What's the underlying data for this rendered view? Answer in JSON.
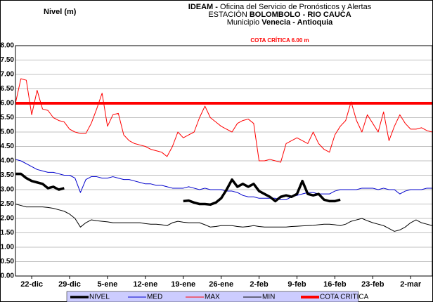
{
  "chart_data": {
    "type": "line",
    "y_label": "Nivel (m)",
    "title_lines": [
      [
        {
          "t": "IDEAM -",
          "b": true
        },
        {
          "t": " Oficina del Servicio de Pronósticos y Alertas",
          "b": false
        }
      ],
      [
        {
          "t": "ESTACIÓN ",
          "b": false
        },
        {
          "t": "BOLOMBOLO - RIO CAUCA",
          "b": true
        }
      ],
      [
        {
          "t": "Municipio ",
          "b": false
        },
        {
          "t": "Venecia - Antioquia",
          "b": true
        }
      ]
    ],
    "annotation": "COTA CRÍTICA 6.00 m",
    "categories": [
      null,
      null,
      null,
      "22-dic",
      null,
      null,
      null,
      null,
      null,
      null,
      "29-dic",
      null,
      null,
      null,
      null,
      null,
      null,
      "5-ene",
      null,
      null,
      null,
      null,
      null,
      null,
      "12-ene",
      null,
      null,
      null,
      null,
      null,
      null,
      "19-ene",
      null,
      null,
      null,
      null,
      null,
      null,
      "26-ene",
      null,
      null,
      null,
      null,
      null,
      null,
      "2-feb",
      null,
      null,
      null,
      null,
      null,
      null,
      "9-feb",
      null,
      null,
      null,
      null,
      null,
      null,
      "16-feb",
      null,
      null,
      null,
      null,
      null,
      null,
      "23-feb",
      null,
      null,
      null,
      null,
      null,
      null,
      "2-mar",
      null,
      null,
      null,
      null
    ],
    "series": [
      {
        "name": "MAX",
        "color": "#ff0000",
        "width": 1,
        "values": [
          6.0,
          6.85,
          6.8,
          5.6,
          6.45,
          5.8,
          5.75,
          5.5,
          5.4,
          5.35,
          5.1,
          5.0,
          4.95,
          4.95,
          5.3,
          5.8,
          6.35,
          5.2,
          5.6,
          5.65,
          4.9,
          4.7,
          4.6,
          4.55,
          4.5,
          4.4,
          4.35,
          4.3,
          4.15,
          4.5,
          5.0,
          4.8,
          4.9,
          5.0,
          5.5,
          5.9,
          5.5,
          5.35,
          5.2,
          5.1,
          5.0,
          5.3,
          5.4,
          5.45,
          5.3,
          4.0,
          4.0,
          4.05,
          4.0,
          3.95,
          4.6,
          4.7,
          4.8,
          4.7,
          4.6,
          5.0,
          4.6,
          4.4,
          4.3,
          4.9,
          5.2,
          5.4,
          6.05,
          5.4,
          5.0,
          5.6,
          5.3,
          5.0,
          5.7,
          4.7,
          5.2,
          5.6,
          5.3,
          5.1,
          5.1,
          5.15,
          5.05,
          5.0
        ]
      },
      {
        "name": "MED",
        "color": "#0000cc",
        "width": 1,
        "values": [
          4.05,
          4.0,
          3.9,
          3.8,
          3.7,
          3.65,
          3.6,
          3.6,
          3.55,
          3.5,
          3.5,
          3.4,
          2.9,
          3.35,
          3.45,
          3.45,
          3.4,
          3.4,
          3.45,
          3.4,
          3.35,
          3.35,
          3.3,
          3.25,
          3.2,
          3.2,
          3.15,
          3.15,
          3.1,
          3.05,
          3.05,
          3.05,
          3.1,
          3.05,
          3.0,
          3.05,
          3.0,
          3.0,
          3.0,
          2.95,
          2.95,
          2.9,
          2.8,
          2.75,
          2.75,
          2.7,
          2.7,
          2.7,
          2.7,
          2.65,
          2.65,
          2.75,
          2.8,
          2.85,
          2.9,
          2.9,
          2.85,
          2.85,
          2.85,
          2.95,
          3.0,
          3.0,
          3.0,
          3.0,
          3.05,
          3.05,
          3.05,
          3.0,
          3.05,
          3.0,
          3.0,
          2.85,
          2.95,
          3.0,
          3.0,
          3.0,
          3.05,
          3.05
        ]
      },
      {
        "name": "MIN",
        "color": "#000000",
        "width": 1,
        "values": [
          2.5,
          2.45,
          2.4,
          2.4,
          2.4,
          2.4,
          2.38,
          2.35,
          2.3,
          2.25,
          2.15,
          2.0,
          1.7,
          1.85,
          1.95,
          1.92,
          1.9,
          1.88,
          1.85,
          1.85,
          1.85,
          1.85,
          1.85,
          1.85,
          1.82,
          1.8,
          1.8,
          1.78,
          1.75,
          1.85,
          1.9,
          1.87,
          1.85,
          1.85,
          1.85,
          1.78,
          1.7,
          1.72,
          1.75,
          1.75,
          1.75,
          1.72,
          1.7,
          1.72,
          1.75,
          1.72,
          1.7,
          1.7,
          1.7,
          1.7,
          1.7,
          1.72,
          1.73,
          1.74,
          1.75,
          1.76,
          1.78,
          1.8,
          1.8,
          1.78,
          1.75,
          1.8,
          1.9,
          1.95,
          2.0,
          1.92,
          1.85,
          1.8,
          1.75,
          1.65,
          1.55,
          1.6,
          1.7,
          1.85,
          1.95,
          1.85,
          1.8,
          1.75
        ]
      },
      {
        "name": "NIVEL",
        "color": "#000000",
        "width": 3.5,
        "values": [
          3.55,
          3.55,
          3.4,
          3.3,
          3.25,
          3.2,
          3.05,
          3.1,
          3.0,
          3.05,
          null,
          null,
          null,
          null,
          null,
          null,
          null,
          null,
          null,
          null,
          null,
          null,
          null,
          null,
          null,
          null,
          null,
          null,
          null,
          null,
          null,
          2.6,
          2.62,
          2.55,
          2.5,
          2.5,
          2.48,
          2.55,
          2.7,
          3.0,
          3.35,
          3.1,
          3.2,
          3.1,
          3.2,
          2.95,
          2.85,
          2.75,
          2.6,
          2.75,
          2.8,
          2.75,
          2.85,
          3.3,
          2.85,
          2.8,
          2.85,
          2.65,
          2.6,
          2.6,
          2.65,
          null,
          null,
          null,
          null,
          null,
          null,
          null,
          null,
          null,
          null,
          null,
          null,
          null,
          null,
          null,
          null,
          null
        ]
      }
    ],
    "reference": {
      "name": "COTA CRITICA",
      "value": 6.0,
      "color": "#ff0000",
      "width": 4
    },
    "legend_order": [
      3,
      1,
      0,
      2
    ],
    "ylim": [
      0,
      8
    ],
    "yticks": [
      {
        "value": 0,
        "label": "0.00"
      },
      {
        "value": 0.5,
        "label": "0.50"
      },
      {
        "value": 1,
        "label": "1.00"
      },
      {
        "value": 1.5,
        "label": "1.50"
      },
      {
        "value": 2,
        "label": "2.00"
      },
      {
        "value": 2.5,
        "label": "2.50"
      },
      {
        "value": 3,
        "label": "3.00"
      },
      {
        "value": 3.5,
        "label": "3.50"
      },
      {
        "value": 4,
        "label": "4.00"
      },
      {
        "value": 4.5,
        "label": "4.50"
      },
      {
        "value": 5,
        "label": "5.00"
      },
      {
        "value": 5.5,
        "label": "5.50"
      },
      {
        "value": 6,
        "label": "6.00"
      },
      {
        "value": 6.5,
        "label": "6.50"
      },
      {
        "value": 7,
        "label": "7.00"
      },
      {
        "value": 7.5,
        "label": "7.50"
      },
      {
        "value": 8,
        "label": "8.00"
      }
    ],
    "grid": true,
    "legend_color": "#ccccff"
  }
}
